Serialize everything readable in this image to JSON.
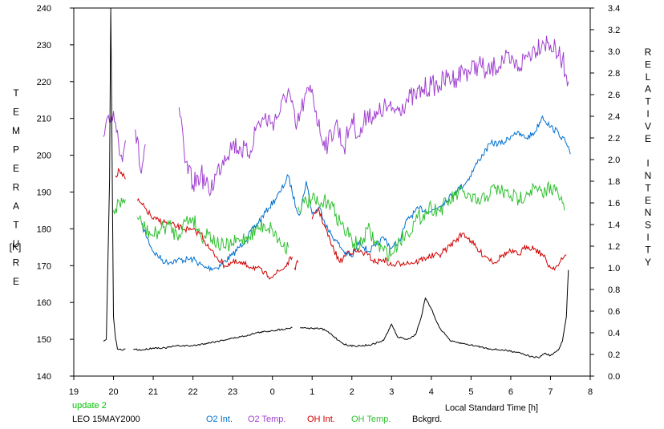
{
  "chart_data": {
    "type": "line",
    "title": "",
    "ylabel_left": "TEMPERATURE",
    "ylabel_left_unit": "[K]",
    "ylabel_right": "RELATIVE INTENSITY",
    "xlabel": "Local Standard Time [h]",
    "xlim": [
      19,
      32
    ],
    "ylim_left": [
      140,
      240
    ],
    "ylim_right": [
      0.0,
      3.4
    ],
    "x_ticks": [
      {
        "v": 19,
        "label": "19"
      },
      {
        "v": 20,
        "label": "20"
      },
      {
        "v": 21,
        "label": "21"
      },
      {
        "v": 22,
        "label": "22"
      },
      {
        "v": 23,
        "label": "23"
      },
      {
        "v": 24,
        "label": "0"
      },
      {
        "v": 25,
        "label": "1"
      },
      {
        "v": 26,
        "label": "2"
      },
      {
        "v": 27,
        "label": "3"
      },
      {
        "v": 28,
        "label": "4"
      },
      {
        "v": 29,
        "label": "5"
      },
      {
        "v": 30,
        "label": "6"
      },
      {
        "v": 31,
        "label": "7"
      },
      {
        "v": 32,
        "label": "8"
      }
    ],
    "y_ticks_left": [
      "140",
      "150",
      "160",
      "170",
      "180",
      "190",
      "200",
      "210",
      "220",
      "230",
      "240"
    ],
    "y_ticks_right": [
      "0.0",
      "0.2",
      "0.4",
      "0.6",
      "0.8",
      "1.0",
      "1.2",
      "1.4",
      "1.6",
      "1.8",
      "2.0",
      "2.2",
      "2.4",
      "2.6",
      "2.8",
      "3.0",
      "3.2",
      "3.4"
    ],
    "grid": false,
    "status_text": "update 2",
    "station_date": "LEO 15MAY2000",
    "series": [
      {
        "name": "O2 Int.",
        "axis": "right",
        "color": "#0070d0",
        "points": [
          [
            20.7,
            1.4
          ],
          [
            21.0,
            1.15
          ],
          [
            21.3,
            1.05
          ],
          [
            21.6,
            1.07
          ],
          [
            22.0,
            1.08
          ],
          [
            22.3,
            1.0
          ],
          [
            22.6,
            1.0
          ],
          [
            23.0,
            1.12
          ],
          [
            23.3,
            1.25
          ],
          [
            23.6,
            1.4
          ],
          [
            23.9,
            1.55
          ],
          [
            24.2,
            1.7
          ],
          [
            24.4,
            1.85
          ],
          [
            24.6,
            1.55
          ],
          [
            24.7,
            1.5
          ],
          [
            24.85,
            1.8
          ],
          [
            25.0,
            1.5
          ],
          [
            25.2,
            1.55
          ],
          [
            25.4,
            1.35
          ],
          [
            25.6,
            1.25
          ],
          [
            25.8,
            1.15
          ],
          [
            26.0,
            1.1
          ],
          [
            26.2,
            1.25
          ],
          [
            26.4,
            1.15
          ],
          [
            26.6,
            1.2
          ],
          [
            26.8,
            1.28
          ],
          [
            27.0,
            1.18
          ],
          [
            27.2,
            1.25
          ],
          [
            27.4,
            1.45
          ],
          [
            27.7,
            1.55
          ],
          [
            28.0,
            1.52
          ],
          [
            28.3,
            1.6
          ],
          [
            28.6,
            1.7
          ],
          [
            28.9,
            1.8
          ],
          [
            29.2,
            2.0
          ],
          [
            29.5,
            2.15
          ],
          [
            29.8,
            2.15
          ],
          [
            30.1,
            2.25
          ],
          [
            30.4,
            2.2
          ],
          [
            30.6,
            2.25
          ],
          [
            30.8,
            2.4
          ],
          [
            31.0,
            2.3
          ],
          [
            31.2,
            2.25
          ],
          [
            31.4,
            2.15
          ],
          [
            31.5,
            2.05
          ]
        ]
      },
      {
        "name": "O2 Temp.",
        "axis": "left",
        "color": "#a040d0",
        "points": [
          [
            19.75,
            205
          ],
          [
            19.9,
            209
          ],
          [
            20.0,
            212
          ],
          [
            20.2,
            200
          ],
          [
            20.3,
            204
          ],
          [
            20.5,
            null
          ],
          [
            20.55,
            207
          ],
          [
            20.7,
            195
          ],
          [
            20.8,
            203
          ],
          [
            20.9,
            null
          ],
          [
            21.65,
            213
          ],
          [
            21.8,
            198
          ],
          [
            22.0,
            192
          ],
          [
            22.2,
            195
          ],
          [
            22.4,
            190
          ],
          [
            22.6,
            195
          ],
          [
            22.8,
            200
          ],
          [
            23.0,
            203
          ],
          [
            23.2,
            202
          ],
          [
            23.4,
            200
          ],
          [
            23.6,
            208
          ],
          [
            23.8,
            210
          ],
          [
            24.0,
            209
          ],
          [
            24.2,
            212
          ],
          [
            24.4,
            218
          ],
          [
            24.6,
            207
          ],
          [
            24.8,
            215
          ],
          [
            25.0,
            218
          ],
          [
            25.2,
            206
          ],
          [
            25.4,
            203
          ],
          [
            25.6,
            209
          ],
          [
            25.8,
            202
          ],
          [
            26.0,
            210
          ],
          [
            26.2,
            205
          ],
          [
            26.4,
            212
          ],
          [
            26.6,
            210
          ],
          [
            26.8,
            213
          ],
          [
            27.0,
            212
          ],
          [
            27.2,
            213
          ],
          [
            27.4,
            215
          ],
          [
            27.6,
            216
          ],
          [
            27.8,
            218
          ],
          [
            28.0,
            219
          ],
          [
            28.2,
            219
          ],
          [
            28.4,
            221
          ],
          [
            28.6,
            221
          ],
          [
            28.8,
            223
          ],
          [
            29.0,
            223
          ],
          [
            29.2,
            225
          ],
          [
            29.4,
            222
          ],
          [
            29.6,
            224
          ],
          [
            29.8,
            226
          ],
          [
            30.0,
            225
          ],
          [
            30.2,
            224
          ],
          [
            30.4,
            227
          ],
          [
            30.6,
            229
          ],
          [
            30.8,
            231
          ],
          [
            31.0,
            230
          ],
          [
            31.2,
            227
          ],
          [
            31.3,
            226
          ],
          [
            31.45,
            220
          ]
        ]
      },
      {
        "name": "OH Int.",
        "axis": "right",
        "color": "#d00000",
        "points": [
          [
            20.05,
            1.85
          ],
          [
            20.15,
            1.9
          ],
          [
            20.3,
            1.82
          ],
          [
            20.35,
            null
          ],
          [
            20.6,
            1.62
          ],
          [
            20.8,
            1.55
          ],
          [
            21.0,
            1.45
          ],
          [
            21.3,
            1.42
          ],
          [
            21.6,
            1.38
          ],
          [
            21.9,
            1.35
          ],
          [
            22.2,
            1.32
          ],
          [
            22.4,
            1.18
          ],
          [
            22.6,
            1.1
          ],
          [
            22.8,
            1.02
          ],
          [
            23.0,
            1.05
          ],
          [
            23.3,
            1.03
          ],
          [
            23.6,
            1.0
          ],
          [
            23.9,
            0.92
          ],
          [
            24.1,
            0.95
          ],
          [
            24.3,
            1.0
          ],
          [
            24.5,
            1.1
          ],
          [
            24.55,
            null
          ],
          [
            24.55,
            1.0
          ],
          [
            24.65,
            1.05
          ],
          [
            24.7,
            null
          ],
          [
            25.0,
            1.45
          ],
          [
            25.15,
            1.55
          ],
          [
            25.3,
            1.4
          ],
          [
            25.5,
            1.2
          ],
          [
            25.7,
            1.05
          ],
          [
            25.9,
            1.15
          ],
          [
            26.2,
            1.15
          ],
          [
            26.4,
            1.12
          ],
          [
            26.6,
            1.05
          ],
          [
            26.8,
            1.08
          ],
          [
            27.0,
            1.02
          ],
          [
            27.3,
            1.05
          ],
          [
            27.6,
            1.05
          ],
          [
            27.9,
            1.1
          ],
          [
            28.2,
            1.12
          ],
          [
            28.4,
            1.18
          ],
          [
            28.6,
            1.25
          ],
          [
            28.8,
            1.32
          ],
          [
            29.0,
            1.25
          ],
          [
            29.2,
            1.15
          ],
          [
            29.4,
            1.1
          ],
          [
            29.6,
            1.05
          ],
          [
            29.8,
            1.12
          ],
          [
            30.0,
            1.15
          ],
          [
            30.2,
            1.12
          ],
          [
            30.4,
            1.2
          ],
          [
            30.6,
            1.18
          ],
          [
            30.8,
            1.12
          ],
          [
            31.0,
            1.0
          ],
          [
            31.2,
            1.02
          ],
          [
            31.3,
            1.08
          ],
          [
            31.4,
            1.12
          ]
        ]
      },
      {
        "name": "OH Temp.",
        "axis": "left",
        "color": "#30c030",
        "points": [
          [
            19.75,
            186
          ],
          [
            19.8,
            null
          ],
          [
            20.0,
            185
          ],
          [
            20.15,
            187
          ],
          [
            20.3,
            188
          ],
          [
            20.35,
            null
          ],
          [
            20.6,
            183
          ],
          [
            20.8,
            180
          ],
          [
            21.0,
            178
          ],
          [
            21.2,
            180
          ],
          [
            21.4,
            181
          ],
          [
            21.6,
            178
          ],
          [
            21.8,
            182
          ],
          [
            22.0,
            183
          ],
          [
            22.2,
            178
          ],
          [
            22.4,
            179
          ],
          [
            22.6,
            176
          ],
          [
            22.8,
            175
          ],
          [
            23.0,
            176
          ],
          [
            23.2,
            177
          ],
          [
            23.4,
            178
          ],
          [
            23.6,
            180
          ],
          [
            23.8,
            181
          ],
          [
            24.0,
            180
          ],
          [
            24.2,
            176
          ],
          [
            24.4,
            175
          ],
          [
            24.55,
            null
          ],
          [
            24.65,
            186
          ],
          [
            24.8,
            187
          ],
          [
            25.0,
            188
          ],
          [
            25.2,
            186
          ],
          [
            25.4,
            188
          ],
          [
            25.6,
            184
          ],
          [
            25.8,
            180
          ],
          [
            26.0,
            177
          ],
          [
            26.2,
            175
          ],
          [
            26.4,
            180
          ],
          [
            26.6,
            176
          ],
          [
            26.8,
            174
          ],
          [
            27.0,
            173
          ],
          [
            27.2,
            177
          ],
          [
            27.4,
            179
          ],
          [
            27.6,
            182
          ],
          [
            27.8,
            184
          ],
          [
            28.0,
            186
          ],
          [
            28.2,
            185
          ],
          [
            28.4,
            187
          ],
          [
            28.6,
            189
          ],
          [
            28.8,
            190
          ],
          [
            29.0,
            188
          ],
          [
            29.2,
            187
          ],
          [
            29.4,
            189
          ],
          [
            29.6,
            191
          ],
          [
            29.8,
            190
          ],
          [
            30.0,
            189
          ],
          [
            30.2,
            188
          ],
          [
            30.4,
            190
          ],
          [
            30.6,
            191
          ],
          [
            30.8,
            189
          ],
          [
            31.0,
            192
          ],
          [
            31.2,
            189
          ],
          [
            31.3,
            187
          ],
          [
            31.35,
            185
          ]
        ]
      },
      {
        "name": "Bckgrd.",
        "axis": "right",
        "color": "#000000",
        "points": [
          [
            19.75,
            0.32
          ],
          [
            19.82,
            0.34
          ],
          [
            19.9,
            1.8
          ],
          [
            19.93,
            3.4
          ],
          [
            19.96,
            2.2
          ],
          [
            20.0,
            0.55
          ],
          [
            20.05,
            0.35
          ],
          [
            20.1,
            0.25
          ],
          [
            20.2,
            0.24
          ],
          [
            20.3,
            0.25
          ],
          [
            20.35,
            null
          ],
          [
            20.5,
            0.25
          ],
          [
            20.7,
            0.24
          ],
          [
            21.0,
            0.26
          ],
          [
            21.3,
            0.26
          ],
          [
            21.6,
            0.28
          ],
          [
            22.0,
            0.28
          ],
          [
            22.3,
            0.3
          ],
          [
            22.6,
            0.32
          ],
          [
            23.0,
            0.35
          ],
          [
            23.3,
            0.37
          ],
          [
            23.6,
            0.4
          ],
          [
            24.0,
            0.42
          ],
          [
            24.4,
            0.44
          ],
          [
            24.5,
            0.45
          ],
          [
            24.6,
            null
          ],
          [
            24.7,
            0.45
          ],
          [
            25.0,
            0.44
          ],
          [
            25.2,
            0.44
          ],
          [
            25.35,
            0.42
          ],
          [
            25.5,
            0.38
          ],
          [
            25.7,
            0.32
          ],
          [
            25.9,
            0.28
          ],
          [
            26.2,
            0.28
          ],
          [
            26.5,
            0.29
          ],
          [
            26.8,
            0.33
          ],
          [
            27.0,
            0.48
          ],
          [
            27.15,
            0.36
          ],
          [
            27.4,
            0.34
          ],
          [
            27.6,
            0.38
          ],
          [
            27.75,
            0.55
          ],
          [
            27.85,
            0.72
          ],
          [
            28.0,
            0.62
          ],
          [
            28.2,
            0.45
          ],
          [
            28.5,
            0.32
          ],
          [
            28.8,
            0.3
          ],
          [
            29.1,
            0.28
          ],
          [
            29.5,
            0.25
          ],
          [
            29.8,
            0.24
          ],
          [
            30.2,
            0.22
          ],
          [
            30.5,
            0.18
          ],
          [
            30.7,
            0.17
          ],
          [
            30.85,
            0.21
          ],
          [
            31.0,
            0.19
          ],
          [
            31.2,
            0.24
          ],
          [
            31.3,
            0.32
          ],
          [
            31.4,
            0.55
          ],
          [
            31.45,
            0.98
          ]
        ]
      }
    ]
  }
}
